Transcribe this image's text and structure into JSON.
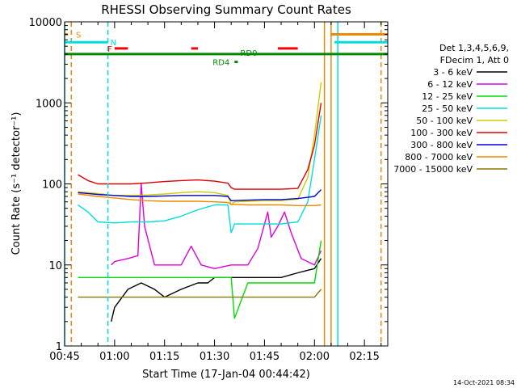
{
  "footer_timestamp": "14-Oct-2021 08:34",
  "chart_data": {
    "type": "line",
    "title": "RHESSI Observing Summary Count Rates",
    "xlabel": "Start Time (17-Jan-04 00:44:42)",
    "ylabel": "Count Rate (s⁻¹ detector⁻¹)",
    "y_scale": "log",
    "ylim": [
      1,
      10000
    ],
    "xlim": [
      "00:45",
      "02:22"
    ],
    "x_ticks": [
      "00:45",
      "01:00",
      "01:15",
      "01:30",
      "01:45",
      "02:00",
      "02:15"
    ],
    "y_ticks": [
      "1",
      "10",
      "100",
      "1000",
      "10000"
    ],
    "legend_header": [
      "Det 1,3,4,5,6,9,",
      "FDecim 1, Att 0"
    ],
    "legend_position": "right",
    "series": [
      {
        "name": "3 - 6 keV",
        "color": "#000000",
        "x": [
          "00:59",
          "01:00",
          "01:04",
          "01:08",
          "01:12",
          "01:15",
          "01:20",
          "01:25",
          "01:28",
          "01:30",
          "01:35",
          "01:40",
          "01:45",
          "01:50",
          "01:55",
          "02:00",
          "02:02"
        ],
        "y": [
          2,
          3,
          5,
          6,
          5,
          4,
          5,
          6,
          6,
          7,
          7,
          7,
          7,
          7,
          8,
          9,
          12
        ]
      },
      {
        "name": "6 - 12 keV",
        "color": "#dd00dd",
        "x": [
          "00:59",
          "01:00",
          "01:04",
          "01:07",
          "01:08",
          "01:09",
          "01:12",
          "01:15",
          "01:20",
          "01:23",
          "01:26",
          "01:30",
          "01:35",
          "01:40",
          "01:43",
          "01:46",
          "01:47",
          "01:49",
          "01:51",
          "01:53",
          "01:56",
          "02:00",
          "02:02"
        ],
        "y": [
          10,
          11,
          12,
          13,
          100,
          30,
          10,
          10,
          10,
          17,
          10,
          9,
          10,
          10,
          16,
          45,
          22,
          30,
          45,
          25,
          12,
          10,
          15
        ]
      },
      {
        "name": "12 - 25 keV",
        "color": "#00dd00",
        "x": [
          "00:49",
          "00:55",
          "01:00",
          "01:05",
          "01:10",
          "01:15",
          "01:20",
          "01:25",
          "01:30",
          "01:35",
          "01:36",
          "01:40",
          "01:45",
          "01:50",
          "01:55",
          "02:00",
          "02:02"
        ],
        "y": [
          7,
          7,
          7,
          7,
          7,
          7,
          7,
          7,
          7,
          7,
          2.2,
          6,
          6,
          6,
          6,
          6,
          20
        ]
      },
      {
        "name": "25 - 50 keV",
        "color": "#00dddd",
        "x": [
          "00:49",
          "00:52",
          "00:55",
          "01:00",
          "01:05",
          "01:10",
          "01:15",
          "01:20",
          "01:25",
          "01:30",
          "01:34",
          "01:35",
          "01:36",
          "01:40",
          "01:45",
          "01:50",
          "01:55",
          "01:58",
          "02:00",
          "02:02"
        ],
        "y": [
          55,
          45,
          34,
          33,
          34,
          34,
          35,
          40,
          48,
          55,
          55,
          25,
          32,
          32,
          32,
          32,
          34,
          60,
          200,
          700
        ]
      },
      {
        "name": "50 - 100 keV",
        "color": "#cccc00",
        "x": [
          "00:49",
          "00:52",
          "00:55",
          "01:00",
          "01:05",
          "01:10",
          "01:15",
          "01:20",
          "01:25",
          "01:30",
          "01:34",
          "01:35",
          "01:36",
          "01:40",
          "01:45",
          "01:50",
          "01:55",
          "01:58",
          "02:00",
          "02:02"
        ],
        "y": [
          80,
          78,
          76,
          72,
          72,
          73,
          75,
          78,
          80,
          78,
          72,
          55,
          60,
          61,
          62,
          62,
          65,
          120,
          400,
          1800
        ]
      },
      {
        "name": "100 - 300 keV",
        "color": "#dd0000",
        "x": [
          "00:49",
          "00:52",
          "00:55",
          "01:00",
          "01:05",
          "01:10",
          "01:15",
          "01:20",
          "01:25",
          "01:30",
          "01:34",
          "01:35",
          "01:36",
          "01:40",
          "01:45",
          "01:50",
          "01:55",
          "01:58",
          "02:00",
          "02:02"
        ],
        "y": [
          130,
          110,
          100,
          100,
          100,
          103,
          107,
          110,
          112,
          108,
          102,
          90,
          86,
          86,
          86,
          86,
          88,
          150,
          300,
          1000
        ]
      },
      {
        "name": "300 - 800 keV",
        "color": "#0000dd",
        "x": [
          "00:49",
          "00:55",
          "01:00",
          "01:05",
          "01:10",
          "01:15",
          "01:20",
          "01:25",
          "01:30",
          "01:34",
          "01:35",
          "01:40",
          "01:45",
          "01:50",
          "01:55",
          "02:00",
          "02:02"
        ],
        "y": [
          78,
          74,
          72,
          70,
          70,
          71,
          72,
          72,
          72,
          70,
          62,
          63,
          64,
          64,
          66,
          70,
          85
        ]
      },
      {
        "name": "800 - 7000 keV",
        "color": "#ee8800",
        "x": [
          "00:49",
          "00:55",
          "01:00",
          "01:05",
          "01:10",
          "01:15",
          "01:20",
          "01:25",
          "01:30",
          "01:34",
          "01:35",
          "01:40",
          "01:45",
          "01:50",
          "01:55",
          "02:00",
          "02:02"
        ],
        "y": [
          75,
          70,
          67,
          64,
          62,
          61,
          61,
          61,
          60,
          59,
          56,
          55,
          55,
          55,
          54,
          54,
          55
        ]
      },
      {
        "name": "7000 - 15000 keV",
        "color": "#887700",
        "x": [
          "00:49",
          "00:55",
          "01:00",
          "01:05",
          "01:10",
          "01:15",
          "01:20",
          "01:25",
          "01:30",
          "01:35",
          "01:40",
          "01:45",
          "01:50",
          "01:55",
          "02:00",
          "02:02"
        ],
        "y": [
          4,
          4,
          4,
          4,
          4,
          4,
          4,
          4,
          4,
          4,
          4,
          4,
          4,
          4,
          4,
          5
        ]
      }
    ],
    "flags": [
      {
        "label": "S",
        "color": "#ee8800",
        "level": 7000,
        "segments": [
          [
            "00:45",
            "00:46"
          ],
          [
            "02:05",
            "02:22"
          ]
        ]
      },
      {
        "label": "N",
        "color": "#00dddd",
        "level": 5600,
        "segments": [
          [
            "00:45",
            "00:58"
          ],
          [
            "02:06",
            "02:22"
          ]
        ]
      },
      {
        "label": "F",
        "color": "#ff0000",
        "level": 4700,
        "segments": [
          [
            "01:00",
            "01:04"
          ],
          [
            "01:23",
            "01:25"
          ],
          [
            "01:49",
            "01:55"
          ]
        ]
      },
      {
        "label": "RD0",
        "color": "#008800",
        "level": 4000,
        "segments": [
          [
            "00:45",
            "02:22"
          ]
        ]
      },
      {
        "label": "RD4",
        "color": "#008800",
        "level": 3200,
        "segments": [
          [
            "01:36",
            "01:37"
          ]
        ]
      }
    ],
    "vertical_markers": [
      {
        "x": "00:45",
        "color": "#00dddd",
        "style": "solid"
      },
      {
        "x": "00:47",
        "color": "#ee8800",
        "style": "dashed"
      },
      {
        "x": "00:58",
        "color": "#00dddd",
        "style": "dashed"
      },
      {
        "x": "02:03",
        "color": "#ee8800",
        "style": "solid"
      },
      {
        "x": "02:05",
        "color": "#ee8800",
        "style": "solid"
      },
      {
        "x": "02:07",
        "color": "#00dddd",
        "style": "solid"
      },
      {
        "x": "02:20",
        "color": "#00dddd",
        "style": "dashed"
      },
      {
        "x": "02:20",
        "color": "#ee8800",
        "style": "dashed"
      }
    ]
  }
}
